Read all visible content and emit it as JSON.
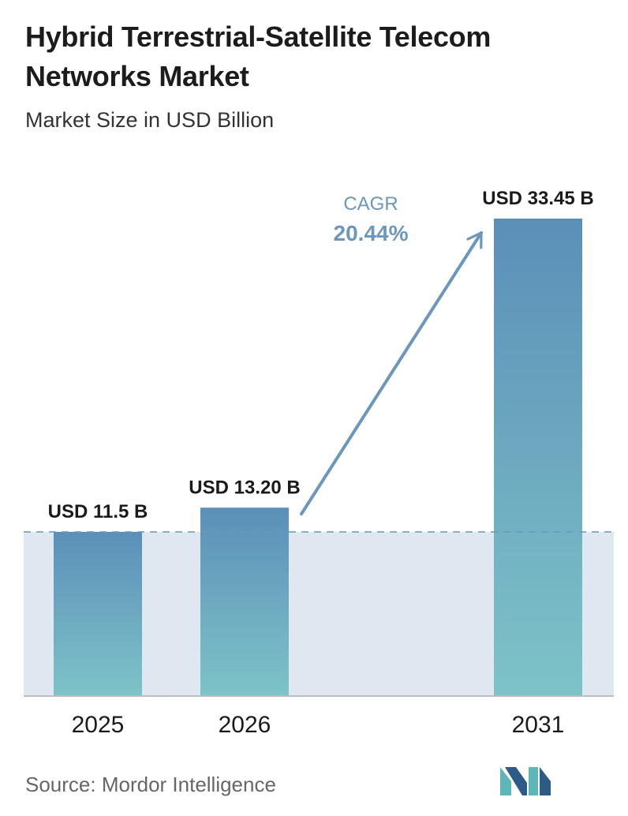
{
  "header": {
    "title": "Hybrid Terrestrial-Satellite Telecom Networks Market",
    "subtitle": "Market Size in USD Billion"
  },
  "footer": {
    "source": "Source:  Mordor Intelligence"
  },
  "colors": {
    "bar_top": "#5b8fb8",
    "bar_bottom": "#7ec3c8",
    "band": "#dfe8f1",
    "arrow": "#6a97bb",
    "baseline_dash": "#6a97bb",
    "axis": "#bdbdbd",
    "cagr_text": "#6a97bb",
    "logo_dark": "#2d5b86",
    "logo_light": "#5fb6b9"
  },
  "icons": {
    "logo": "mordor-intelligence-logo"
  },
  "chart_data": {
    "type": "bar",
    "categories": [
      "2025",
      "2026",
      "2031"
    ],
    "values": [
      11.5,
      13.2,
      33.45
    ],
    "data_labels": [
      "USD 11.5 B",
      "USD 13.20 B",
      "USD 33.45 B"
    ],
    "title": "Hybrid Terrestrial-Satellite Telecom Networks Market",
    "subtitle": "Market Size in USD Billion",
    "xlabel": "",
    "ylabel": "",
    "ylim": [
      0,
      35
    ],
    "grid": false,
    "legend": "none",
    "annotations": {
      "cagr_label": "CAGR",
      "cagr_value": "20.44%"
    }
  }
}
